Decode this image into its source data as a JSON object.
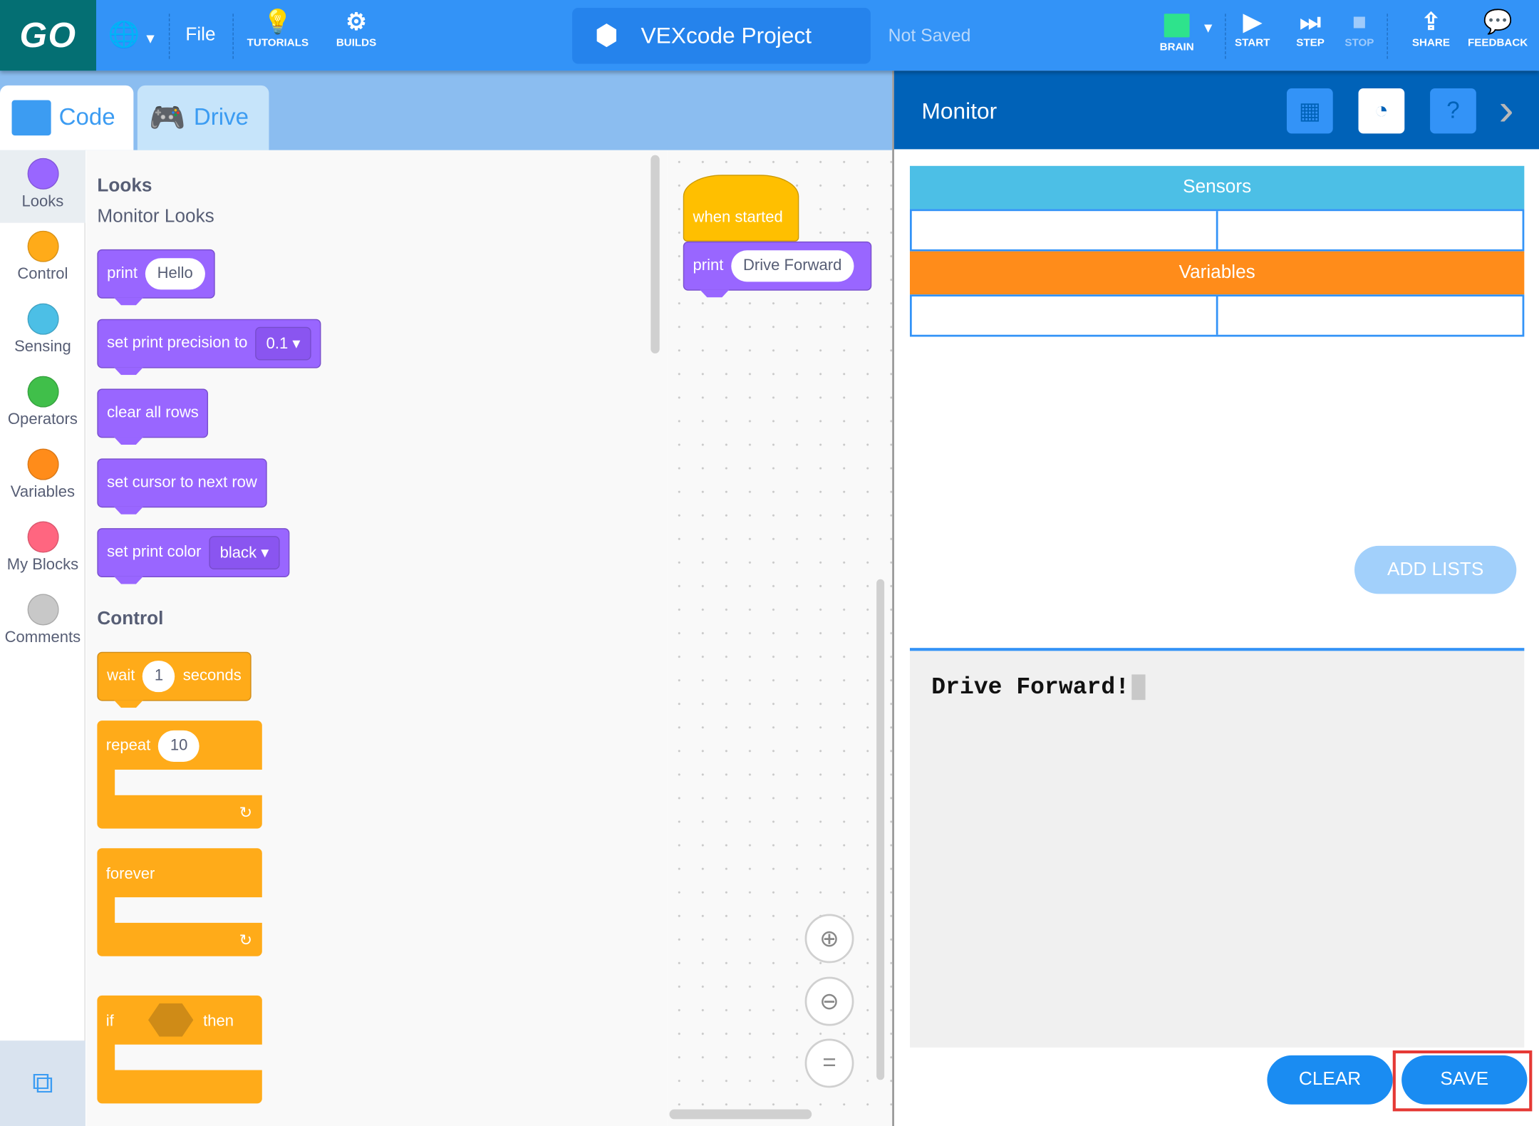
{
  "topbar": {
    "logo": "GO",
    "file": "File",
    "tutorials": "TUTORIALS",
    "builds": "BUILDS",
    "project_title": "VEXcode Project",
    "save_status": "Not Saved",
    "brain": "BRAIN",
    "start": "START",
    "step": "STEP",
    "stop": "STOP",
    "share": "SHARE",
    "feedback": "FEEDBACK"
  },
  "tabs": [
    {
      "label": "Code"
    },
    {
      "label": "Drive"
    }
  ],
  "categories": [
    {
      "label": "Looks",
      "color": "#9966ff"
    },
    {
      "label": "Control",
      "color": "#ffab19"
    },
    {
      "label": "Sensing",
      "color": "#4cbfe6"
    },
    {
      "label": "Operators",
      "color": "#40bf4a"
    },
    {
      "label": "Variables",
      "color": "#ff8c1a"
    },
    {
      "label": "My Blocks",
      "color": "#ff6680"
    },
    {
      "label": "Comments",
      "color": "#c8c8c8"
    }
  ],
  "palette": {
    "looks_title": "Looks",
    "looks_sub": "Monitor Looks",
    "print": {
      "label": "print",
      "value": "Hello"
    },
    "precision": {
      "label": "set print precision to",
      "value": "0.1"
    },
    "clear_rows": "clear all rows",
    "next_row": "set cursor to next row",
    "color": {
      "label": "set print color",
      "value": "black"
    },
    "control_title": "Control",
    "wait": {
      "label": "wait",
      "value": "1",
      "unit": "seconds"
    },
    "repeat": {
      "label": "repeat",
      "value": "10"
    },
    "forever": "forever",
    "if": {
      "label": "if",
      "then": "then"
    }
  },
  "workspace": {
    "hat": "when started",
    "print_label": "print",
    "print_value": "Drive Forward"
  },
  "monitor": {
    "title": "Monitor",
    "sensors": "Sensors",
    "variables": "Variables",
    "add_lists": "ADD LISTS",
    "console_text": "Drive Forward!",
    "clear": "CLEAR",
    "save": "SAVE"
  }
}
